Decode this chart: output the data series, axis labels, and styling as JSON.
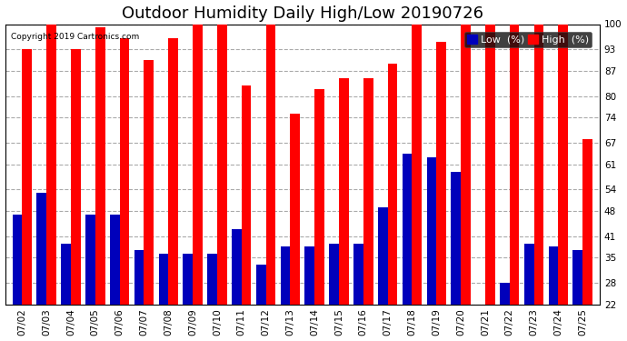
{
  "title": "Outdoor Humidity Daily High/Low 20190726",
  "copyright": "Copyright 2019 Cartronics.com",
  "dates": [
    "07/02",
    "07/03",
    "07/04",
    "07/05",
    "07/06",
    "07/07",
    "07/08",
    "07/09",
    "07/10",
    "07/11",
    "07/12",
    "07/13",
    "07/14",
    "07/15",
    "07/16",
    "07/17",
    "07/18",
    "07/19",
    "07/20",
    "07/21",
    "07/22",
    "07/23",
    "07/24",
    "07/25"
  ],
  "high": [
    93,
    100,
    93,
    99,
    96,
    90,
    96,
    100,
    100,
    83,
    100,
    75,
    82,
    85,
    85,
    89,
    100,
    95,
    100,
    100,
    100,
    100,
    100,
    68
  ],
  "low": [
    47,
    53,
    39,
    47,
    47,
    37,
    36,
    36,
    36,
    43,
    33,
    38,
    38,
    39,
    39,
    49,
    64,
    63,
    59,
    22,
    28,
    39,
    38,
    37
  ],
  "high_color": "#ff0000",
  "low_color": "#0000bb",
  "bg_color": "#ffffff",
  "grid_color": "#aaaaaa",
  "yticks": [
    22,
    28,
    35,
    41,
    48,
    54,
    61,
    67,
    74,
    80,
    87,
    93,
    100
  ],
  "ymin": 22,
  "ymax": 100,
  "bar_width": 0.4,
  "title_fontsize": 13,
  "tick_fontsize": 7.5,
  "legend_fontsize": 8
}
